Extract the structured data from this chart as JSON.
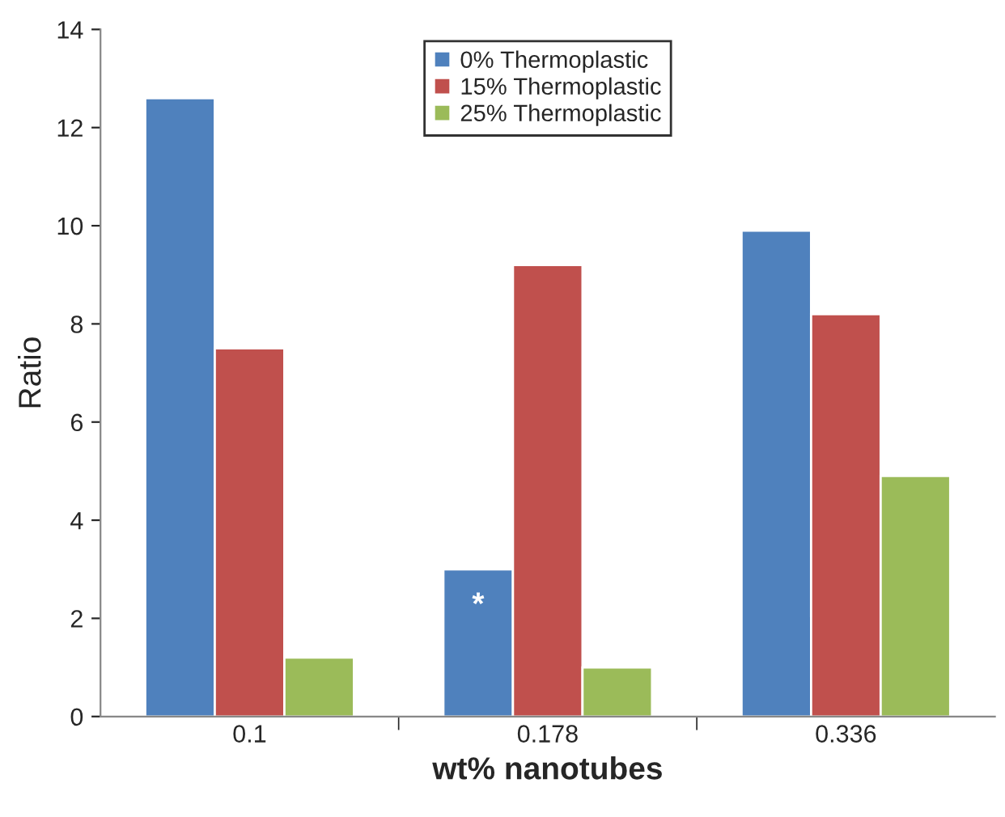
{
  "chart_data": {
    "type": "bar",
    "xlabel": "wt% nanotubes",
    "ylabel": "Ratio",
    "categories": [
      "0.1",
      "0.178",
      "0.336"
    ],
    "series": [
      {
        "name": "0% Thermoplastic",
        "color": "#4f81bd",
        "values": [
          12.6,
          3.0,
          9.9
        ]
      },
      {
        "name": "15% Thermoplastic",
        "color": "#c0504d",
        "values": [
          7.5,
          9.2,
          8.2
        ]
      },
      {
        "name": "25% Thermoplastic",
        "color": "#9bbb59",
        "values": [
          1.2,
          1.0,
          4.9
        ]
      }
    ],
    "ylim": [
      0,
      14
    ],
    "yticks": [
      0,
      2,
      4,
      6,
      8,
      10,
      12,
      14
    ],
    "grid": false,
    "legend": "top",
    "annotations": [
      "*"
    ]
  }
}
